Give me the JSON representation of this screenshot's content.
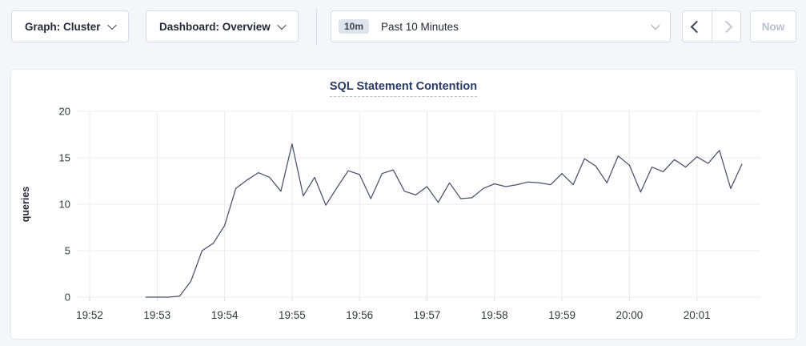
{
  "toolbar": {
    "graph_dropdown": {
      "label": "Graph: Cluster"
    },
    "dashboard_dropdown": {
      "label": "Dashboard: Overview"
    },
    "time_range": {
      "badge": "10m",
      "label": "Past 10 Minutes"
    },
    "prev_enabled": true,
    "next_enabled": false,
    "now_button": {
      "label": "Now",
      "enabled": false
    }
  },
  "icons": {
    "dropdown_chevron": "⌄",
    "time_prev": "‹",
    "time_next": "›"
  },
  "colors": {
    "page_bg": "#f5f6fa",
    "panel_bg": "#ffffff",
    "border": "#d7dbe3",
    "text": "#242a35",
    "title": "#2a3a63",
    "disabled": "#b9c0cb",
    "badge_bg": "#dfe3eb",
    "grid": "#ebebee",
    "line": "#47506a"
  },
  "chart_data": {
    "type": "line",
    "title": "SQL Statement Contention",
    "xlabel": "",
    "ylabel": "queries",
    "ylim": [
      0,
      20
    ],
    "y_ticks": [
      0,
      5,
      10,
      15,
      20
    ],
    "x_ticks": [
      "19:52",
      "19:53",
      "19:54",
      "19:55",
      "19:56",
      "19:57",
      "19:58",
      "19:59",
      "20:00",
      "20:01"
    ],
    "grid": true,
    "legend_position": "none",
    "series": [
      {
        "name": "SQL Statement Contention",
        "color": "#47506a",
        "points": [
          [
            "19:52:50",
            0
          ],
          [
            "19:53:00",
            0
          ],
          [
            "19:53:10",
            0
          ],
          [
            "19:53:20",
            0.1
          ],
          [
            "19:53:30",
            1.7
          ],
          [
            "19:53:40",
            5.0
          ],
          [
            "19:53:50",
            5.8
          ],
          [
            "19:54:00",
            7.7
          ],
          [
            "19:54:10",
            11.7
          ],
          [
            "19:54:20",
            12.6
          ],
          [
            "19:54:30",
            13.4
          ],
          [
            "19:54:40",
            12.9
          ],
          [
            "19:54:50",
            11.4
          ],
          [
            "19:55:00",
            16.5
          ],
          [
            "19:55:10",
            10.9
          ],
          [
            "19:55:20",
            12.9
          ],
          [
            "19:55:30",
            9.9
          ],
          [
            "19:55:40",
            11.8
          ],
          [
            "19:55:50",
            13.6
          ],
          [
            "19:56:00",
            13.2
          ],
          [
            "19:56:10",
            10.6
          ],
          [
            "19:56:20",
            13.3
          ],
          [
            "19:56:30",
            13.7
          ],
          [
            "19:56:40",
            11.4
          ],
          [
            "19:56:50",
            11.0
          ],
          [
            "19:57:00",
            11.9
          ],
          [
            "19:57:10",
            10.2
          ],
          [
            "19:57:20",
            12.3
          ],
          [
            "19:57:30",
            10.6
          ],
          [
            "19:57:40",
            10.7
          ],
          [
            "19:57:50",
            11.7
          ],
          [
            "19:58:00",
            12.2
          ],
          [
            "19:58:10",
            11.9
          ],
          [
            "19:58:20",
            12.1
          ],
          [
            "19:58:30",
            12.4
          ],
          [
            "19:58:40",
            12.3
          ],
          [
            "19:58:50",
            12.1
          ],
          [
            "19:59:00",
            13.3
          ],
          [
            "19:59:10",
            12.1
          ],
          [
            "19:59:20",
            14.9
          ],
          [
            "19:59:30",
            14.1
          ],
          [
            "19:59:40",
            12.3
          ],
          [
            "19:59:50",
            15.2
          ],
          [
            "20:00:00",
            14.2
          ],
          [
            "20:00:10",
            11.3
          ],
          [
            "20:00:20",
            14.0
          ],
          [
            "20:00:30",
            13.5
          ],
          [
            "20:00:40",
            14.8
          ],
          [
            "20:00:50",
            14.0
          ],
          [
            "20:01:00",
            15.1
          ],
          [
            "20:01:10",
            14.4
          ],
          [
            "20:01:20",
            15.8
          ],
          [
            "20:01:30",
            11.7
          ],
          [
            "20:01:40",
            14.3
          ]
        ]
      }
    ]
  }
}
